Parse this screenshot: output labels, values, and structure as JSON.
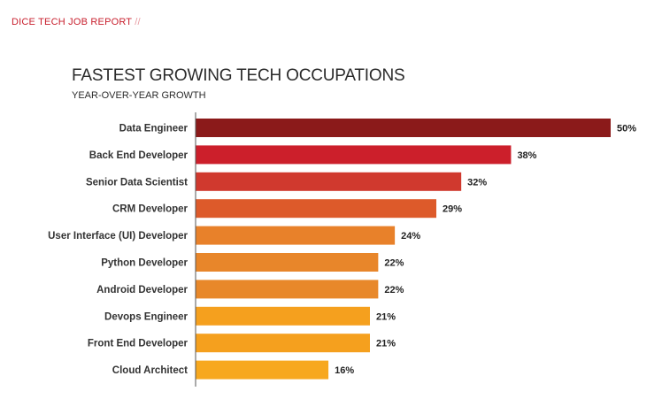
{
  "header": {
    "label": "DICE TECH JOB REPORT",
    "slashes": "//"
  },
  "chart_data": {
    "type": "bar",
    "orientation": "horizontal",
    "title": "FASTEST GROWING TECH OCCUPATIONS",
    "subtitle": "YEAR-OVER-YEAR GROWTH",
    "categories": [
      "Data Engineer",
      "Back End Developer",
      "Senior Data Scientist",
      "CRM Developer",
      "User Interface (UI) Developer",
      "Python Developer",
      "Android Developer",
      "Devops Engineer",
      "Front End Developer",
      "Cloud Architect"
    ],
    "values": [
      50,
      38,
      32,
      29,
      24,
      22,
      22,
      21,
      21,
      16
    ],
    "value_labels": [
      "50%",
      "38%",
      "32%",
      "29%",
      "24%",
      "22%",
      "22%",
      "21%",
      "21%",
      "16%"
    ],
    "colors": [
      "#8b1a1a",
      "#cc1f2b",
      "#d0392e",
      "#dd5a2a",
      "#e8812a",
      "#e8862a",
      "#e8882a",
      "#f5a01e",
      "#f5a01e",
      "#f7a81e"
    ],
    "xlim": [
      0,
      50
    ],
    "grid": false,
    "legend": "none"
  }
}
